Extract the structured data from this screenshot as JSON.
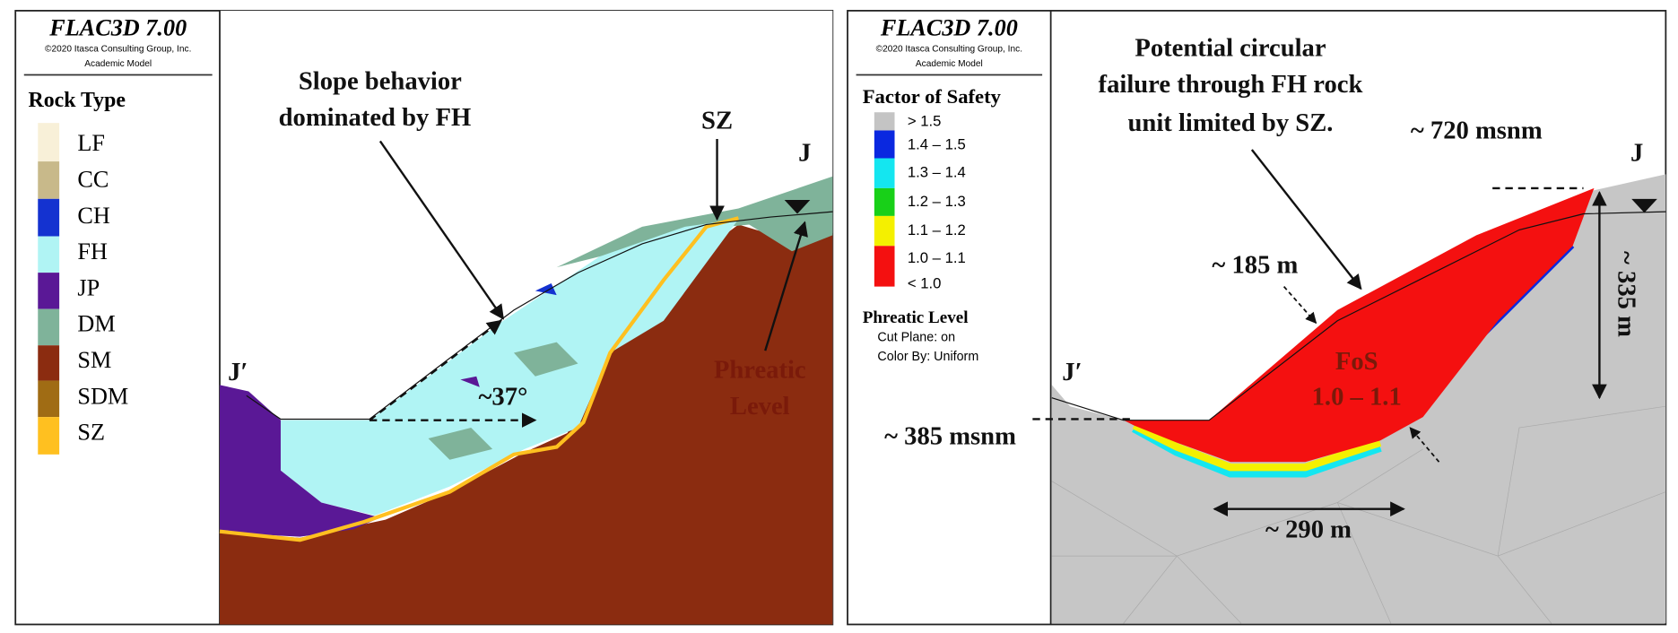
{
  "panels": [
    {
      "software": "FLAC3D 7.00",
      "copyright": "©2020 Itasca Consulting Group, Inc.",
      "license": "Academic Model",
      "legend_title": "Rock Type",
      "legend_items": [
        "LF",
        "CC",
        "CH",
        "FH",
        "JP",
        "DM",
        "SM",
        "SDM",
        "SZ"
      ],
      "annotations": [
        "Slope behavior",
        "dominated by FH",
        "SZ",
        "J",
        "Phreatic",
        "Level",
        "J′",
        "~37°"
      ]
    },
    {
      "software": "FLAC3D 7.00",
      "copyright": "©2020 Itasca Consulting Group, Inc.",
      "license": "Academic Model",
      "legend_title": "Factor of Safety",
      "legend_items": [
        "> 1.5",
        "1.4 – 1.5",
        "1.3 – 1.4",
        "1.2 – 1.3",
        "1.1 – 1.2",
        "1.0 – 1.1",
        "< 1.0"
      ],
      "phreatic_title": "Phreatic Level",
      "phreatic_settings": [
        "Cut Plane: on",
        "Color By: Uniform"
      ],
      "annotations": [
        "Potential circular",
        "failure through FH rock",
        "unit limited by SZ.",
        "~ 720 msnm",
        "J",
        "~ 185 m",
        "FoS",
        "1.0 – 1.1",
        "J′",
        "~ 385 msnm",
        "~ 290 m",
        "~ 335 m"
      ]
    }
  ]
}
